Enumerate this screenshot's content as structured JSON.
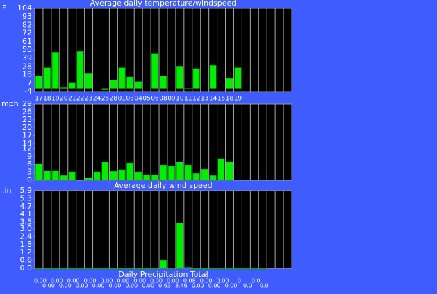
{
  "chart_data": [
    {
      "type": "bar",
      "title": "Average daily temperature/windspeed",
      "unit": "F",
      "color": "#00ee00",
      "categories": [
        "17",
        "18",
        "19",
        "20",
        "21",
        "22",
        "23",
        "24",
        "25",
        "28",
        "01",
        "03",
        "04",
        "05",
        "06",
        "08",
        "09",
        "10",
        "11",
        "12",
        "13",
        "14",
        "15",
        "18",
        "19",
        null,
        null,
        null,
        null,
        null,
        null
      ],
      "values": [
        16,
        27,
        47,
        1,
        8,
        48,
        20,
        null,
        -2,
        11,
        27,
        15,
        9,
        null,
        45,
        16,
        null,
        29,
        0,
        26,
        null,
        30,
        null,
        13,
        27,
        null,
        null,
        null,
        null,
        null,
        null
      ],
      "ylim": [
        -4,
        104
      ],
      "yticks": [
        104,
        93,
        82,
        72,
        61,
        50,
        39,
        28,
        18,
        7,
        -4
      ]
    },
    {
      "type": "bar",
      "title": "Average daily wind speed",
      "unit": "mph",
      "color": "#00ee00",
      "values": [
        6.3,
        3.7,
        3.7,
        1.8,
        3.2,
        null,
        1,
        3.2,
        6.9,
        3.4,
        4,
        6.6,
        3.2,
        2.1,
        2.1,
        5.8,
        5.3,
        7.1,
        5.8,
        2.6,
        4.2,
        1.8,
        8.2,
        7.1,
        null,
        null,
        null,
        null,
        null,
        null,
        null
      ],
      "ylim": [
        0,
        29
      ],
      "yticks": [
        29,
        26,
        23,
        20,
        17,
        14,
        12,
        9,
        6,
        3,
        0
      ]
    },
    {
      "type": "bar",
      "title": "Daily Precipitation Total",
      "unit": ".in",
      "color": "#00ee00",
      "values": [
        0,
        0,
        0,
        0,
        0,
        0,
        0,
        0,
        0,
        0,
        0,
        0,
        0,
        0,
        0,
        0.63,
        0,
        3.46,
        0.08,
        0,
        0,
        0,
        0,
        0,
        0,
        0,
        0,
        0,
        null,
        null,
        null
      ],
      "value_labels": [
        "0.00",
        "0.00",
        "0.00",
        "0.00",
        "0.00",
        "0.00",
        "0.00",
        "0.00",
        "0.00",
        "0.00",
        "0.00",
        "0.00",
        "0.00",
        "0.00",
        "0.00",
        "0.63",
        "0.00",
        "3.46",
        "0.08",
        "0.00",
        "0.00",
        "0.00",
        "0.00",
        "0.00",
        "0",
        "0.0",
        "0.0",
        "0.0",
        null,
        null,
        null
      ],
      "ylim": [
        0,
        5.9
      ],
      "yticks": [
        5.9,
        5.3,
        4.7,
        4.1,
        3.5,
        {
          "value": 3,
          "label": "3.0"
        },
        2.4,
        1.8,
        1.2,
        0.6,
        {
          "value": 0,
          "label": "0.0"
        }
      ]
    }
  ]
}
